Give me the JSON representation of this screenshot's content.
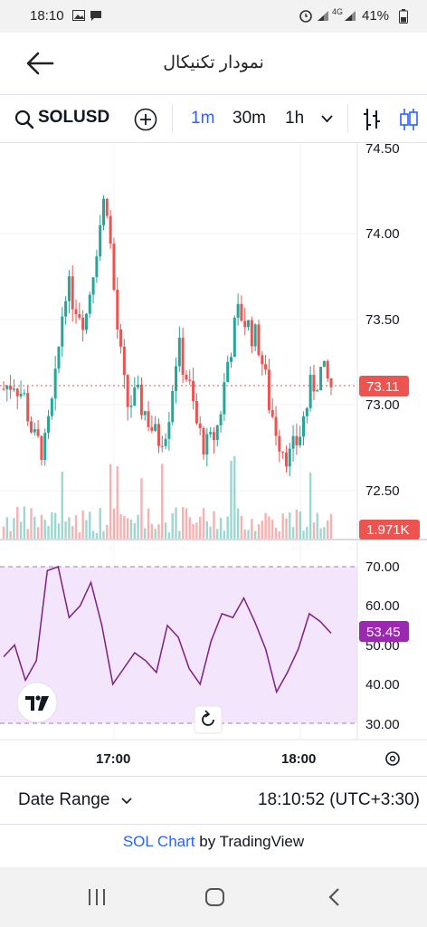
{
  "status_bar": {
    "time": "18:10",
    "battery": "41%",
    "signal_1": "4G",
    "icons": [
      "gallery-icon",
      "message-icon",
      "alarm-icon",
      "signal-icon",
      "signal-icon",
      "battery-icon"
    ]
  },
  "header": {
    "title": "نمودار تکنیکال",
    "back_icon": "arrow-left-icon"
  },
  "toolbar": {
    "symbol": "SOLUSD",
    "timeframes": [
      "1m",
      "30m",
      "1h"
    ],
    "active_timeframe": "1m",
    "accent": "#2962ff"
  },
  "chart": {
    "price_labels": [
      "74.50",
      "74.00",
      "73.50",
      "73.00",
      "72.50"
    ],
    "current_price": "73.11",
    "volume_badge": "1.971K",
    "rsi_labels": [
      "70.00",
      "60.00",
      "50.00",
      "40.00",
      "30.00"
    ],
    "rsi_value": "53.45",
    "time_labels": [
      "17:00",
      "18:00"
    ],
    "colors": {
      "up": "#26a69a",
      "down": "#ef5350",
      "rsi_line": "#7e1f86",
      "rsi_band": "#f3e5fb",
      "rsi_badge": "#9c27b0"
    }
  },
  "chart_data": {
    "type": "line",
    "series": [
      {
        "values": [
          73.1,
          73.15,
          73.05,
          72.8,
          72.75,
          73.1,
          73.7,
          73.6,
          73.5,
          73.9,
          74.25,
          73.5,
          73.0,
          73.05,
          72.95,
          72.8,
          72.9,
          73.35,
          73.15,
          72.85,
          72.75,
          72.9,
          73.3,
          73.55,
          73.45,
          73.35,
          73.0,
          72.8,
          72.7,
          72.85,
          73.1,
          73.2,
          73.11
        ]
      },
      {
        "values": [
          47,
          50,
          41,
          46,
          69,
          70,
          57,
          60,
          66,
          55,
          40,
          44,
          48,
          46,
          43,
          55,
          52,
          44,
          40,
          51,
          58,
          57,
          62,
          56,
          49,
          38,
          43,
          49,
          58,
          56,
          53
        ]
      }
    ],
    "ylim": [
      72.3,
      74.5
    ]
  },
  "footer": {
    "date_range": "Date Range",
    "clock": "18:10:52 (UTC+3:30)",
    "attribution_link": "SOL Chart",
    "attribution_rest": " by TradingView"
  }
}
